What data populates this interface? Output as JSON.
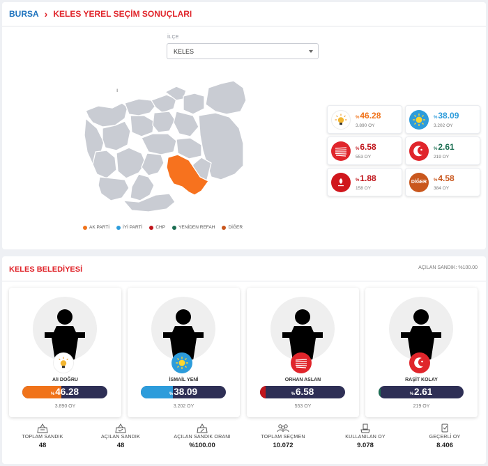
{
  "breadcrumb": {
    "root": "BURSA",
    "separator": "›",
    "page": "KELES YEREL SEÇİM SONUÇLARI"
  },
  "district_select": {
    "label": "İLÇE",
    "value": "KELES"
  },
  "legend": [
    {
      "label": "AK PARTİ",
      "color": "#f0731a"
    },
    {
      "label": "İYİ PARTİ",
      "color": "#2d9cdb"
    },
    {
      "label": "CHP",
      "color": "#c0151b"
    },
    {
      "label": "YENİDEN REFAH",
      "color": "#1b6e52"
    },
    {
      "label": "DİĞER",
      "color": "#c9571d"
    }
  ],
  "results": [
    {
      "party": "AK PARTİ",
      "icon": "akparti-bulb-icon",
      "pct_prefix": "%",
      "pct": "46.28",
      "votes": "3.890 OY",
      "color": "#f0731a"
    },
    {
      "party": "İYİ PARTİ",
      "icon": "iyiparti-sun-icon",
      "pct_prefix": "%",
      "pct": "38.09",
      "votes": "3.202 OY",
      "color": "#2d9cdb"
    },
    {
      "party": "CHP",
      "icon": "chp-arrows-icon",
      "pct_prefix": "%",
      "pct": "6.58",
      "votes": "553 OY",
      "color": "#c0151b"
    },
    {
      "party": "YENİDEN REFAH",
      "icon": "yenidenrefah-crescent-icon",
      "pct_prefix": "%",
      "pct": "2.61",
      "votes": "219 OY",
      "color": "#1b6e52"
    },
    {
      "party": "DEVA",
      "icon": "party-emblem-icon",
      "pct_prefix": "%",
      "pct": "1.88",
      "votes": "158 OY",
      "color": "#c0151b"
    },
    {
      "party": "DİĞER",
      "icon": "diger-badge-icon",
      "badge_text": "DİĞER",
      "pct_prefix": "%",
      "pct": "4.58",
      "votes": "384 OY",
      "color": "#c9571d"
    }
  ],
  "municipality": {
    "title": "KELES BELEDİYESİ",
    "opened_ballot": "AÇILAN SANDIK: %100.00"
  },
  "candidates": [
    {
      "name": "Ali DOĞRU",
      "pct_prefix": "%",
      "pct": "46.28",
      "share": 0.4628,
      "votes": "3.890 OY",
      "bar_color": "#f0731a",
      "logo": "akparti-bulb-icon"
    },
    {
      "name": "İSMAİL YENİ",
      "pct_prefix": "%",
      "pct": "38.09",
      "share": 0.3809,
      "votes": "3.202 OY",
      "bar_color": "#2d9cdb",
      "logo": "iyiparti-sun-icon"
    },
    {
      "name": "ORHAN ASLAN",
      "pct_prefix": "%",
      "pct": "6.58",
      "share": 0.0658,
      "votes": "553 OY",
      "bar_color": "#c0151b",
      "logo": "chp-arrows-icon"
    },
    {
      "name": "RAŞİT KOLAY",
      "pct_prefix": "%",
      "pct": "2.61",
      "share": 0.0261,
      "votes": "219 OY",
      "bar_color": "#1b6e52",
      "logo": "yenidenrefah-crescent-icon"
    }
  ],
  "stats": [
    {
      "label": "TOPLAM SANDIK",
      "value": "48",
      "icon": "ballot-box-icon"
    },
    {
      "label": "AÇILAN SANDIK",
      "value": "48",
      "icon": "open-ballot-box-icon"
    },
    {
      "label": "AÇILAN SANDIK ORANI",
      "value": "%100.00",
      "icon": "ballot-percent-icon"
    },
    {
      "label": "TOPLAM SEÇMEN",
      "value": "10.072",
      "icon": "voters-icon"
    },
    {
      "label": "KULLANILAN OY",
      "value": "9.078",
      "icon": "vote-cast-icon"
    },
    {
      "label": "GEÇERLİ OY",
      "value": "8.406",
      "icon": "valid-vote-icon"
    }
  ]
}
